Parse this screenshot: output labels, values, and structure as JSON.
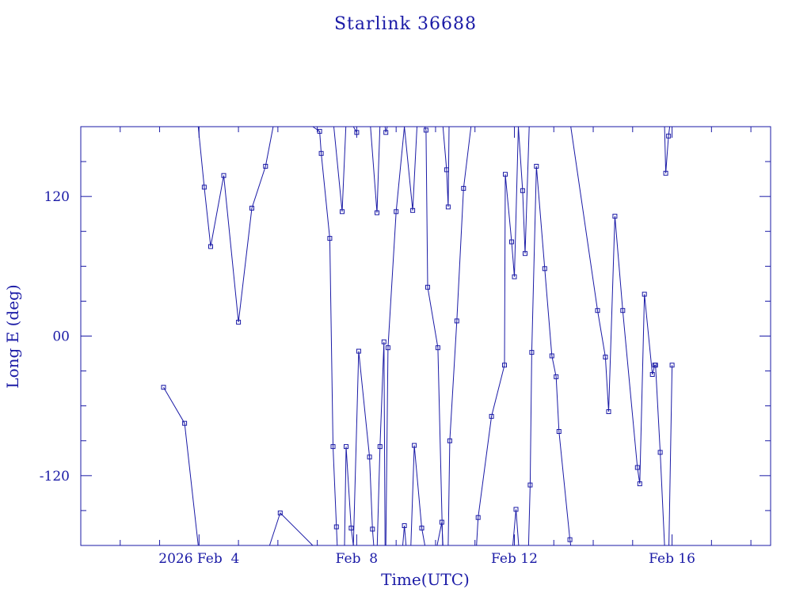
{
  "chart_data": {
    "type": "line",
    "title": "Starlink 36688",
    "xlabel": "Time(UTC)",
    "ylabel": "Long E (deg)",
    "x_range": [
      "2026-02-01T00:00",
      "2026-02-18T12:00"
    ],
    "ylim": [
      -180,
      180
    ],
    "x_tick_labels": [
      {
        "at": "2026-02-04T00:00",
        "label": "2026 Feb  4"
      },
      {
        "at": "2026-02-08T00:00",
        "label": "Feb  8"
      },
      {
        "at": "2026-02-12T00:00",
        "label": "Feb 12"
      },
      {
        "at": "2026-02-16T00:00",
        "label": "Feb 16"
      }
    ],
    "y_tick_labels": [
      {
        "at": 120,
        "label": "120"
      },
      {
        "at": 0,
        "label": "00"
      },
      {
        "at": -120,
        "label": "-120"
      }
    ],
    "grid": false,
    "color": "#1a1aa6",
    "series": [
      {
        "points": [
          [
            "2026-02-03T02:24",
            -44
          ],
          [
            "2026-02-03T15:12",
            -75
          ],
          [
            "2026-02-03T23:31",
            -180
          ]
        ]
      },
      {
        "points": [
          [
            "2026-02-03T23:31",
            180
          ],
          [
            "2026-02-04T03:10",
            128
          ],
          [
            "2026-02-04T07:06",
            77
          ],
          [
            "2026-02-04T15:02",
            138
          ],
          [
            "2026-02-05T00:00",
            12
          ],
          [
            "2026-02-05T08:10",
            110
          ],
          [
            "2026-02-05T16:29",
            146
          ],
          [
            "2026-02-05T21:07",
            180
          ]
        ]
      },
      {
        "points": [
          [
            "2026-02-05T18:58",
            -180
          ],
          [
            "2026-02-06T01:26",
            -152
          ],
          [
            "2026-02-06T21:14",
            -180
          ]
        ]
      },
      {
        "points": [
          [
            "2026-02-06T21:14",
            180
          ],
          [
            "2026-02-07T01:26",
            176
          ],
          [
            "2026-02-07T02:24",
            157
          ],
          [
            "2026-02-07T07:35",
            84
          ],
          [
            "2026-02-07T09:36",
            -95
          ],
          [
            "2026-02-07T11:38",
            -164
          ],
          [
            "2026-02-07T12:07",
            -180
          ]
        ]
      },
      {
        "points": [
          [
            "2026-02-07T10:05",
            180
          ],
          [
            "2026-02-07T15:07",
            107
          ],
          [
            "2026-02-07T17:24",
            180
          ]
        ]
      },
      {
        "points": [
          [
            "2026-02-07T16:34",
            -180
          ],
          [
            "2026-02-07T17:31",
            -95
          ],
          [
            "2026-02-07T20:38",
            -165
          ],
          [
            "2026-02-07T21:58",
            -180
          ]
        ]
      },
      {
        "points": [
          [
            "2026-02-07T21:58",
            180
          ],
          [
            "2026-02-08T00:00",
            175
          ]
        ]
      },
      {
        "points": [
          [
            "2026-02-07T21:58",
            -180
          ],
          [
            "2026-02-08T01:12",
            -13
          ],
          [
            "2026-02-08T07:48",
            -104
          ],
          [
            "2026-02-08T09:36",
            -166
          ],
          [
            "2026-02-08T10:22",
            -180
          ]
        ]
      },
      {
        "points": [
          [
            "2026-02-08T08:22",
            180
          ],
          [
            "2026-02-08T12:22",
            106
          ],
          [
            "2026-02-08T14:07",
            180
          ]
        ]
      },
      {
        "points": [
          [
            "2026-02-08T12:29",
            -180
          ],
          [
            "2026-02-08T14:10",
            -95
          ],
          [
            "2026-02-08T16:36",
            -5
          ],
          [
            "2026-02-08T17:17",
            -180
          ]
        ]
      },
      {
        "points": [
          [
            "2026-02-08T17:17",
            180
          ],
          [
            "2026-02-08T17:46",
            175
          ],
          [
            "2026-02-08T18:38",
            180
          ]
        ]
      },
      {
        "points": [
          [
            "2026-02-08T17:46",
            -180
          ],
          [
            "2026-02-08T19:02",
            -10
          ],
          [
            "2026-02-09T00:00",
            107
          ],
          [
            "2026-02-09T05:02",
            180
          ]
        ]
      },
      {
        "points": [
          [
            "2026-02-09T04:00",
            -180
          ],
          [
            "2026-02-09T05:02",
            -163
          ],
          [
            "2026-02-09T06:02",
            -180
          ]
        ]
      },
      {
        "points": [
          [
            "2026-02-09T05:02",
            180
          ],
          [
            "2026-02-09T10:05",
            108
          ],
          [
            "2026-02-09T12:41",
            180
          ]
        ]
      },
      {
        "points": [
          [
            "2026-02-09T09:00",
            -180
          ],
          [
            "2026-02-09T11:02",
            -94
          ],
          [
            "2026-02-09T15:36",
            -165
          ],
          [
            "2026-02-09T17:31",
            -180
          ]
        ]
      },
      {
        "points": [
          [
            "2026-02-09T17:31",
            180
          ],
          [
            "2026-02-09T18:12",
            177
          ],
          [
            "2026-02-09T19:12",
            42
          ],
          [
            "2026-02-10T01:26",
            -10
          ],
          [
            "2026-02-10T04:19",
            -180
          ]
        ]
      },
      {
        "points": [
          [
            "2026-02-10T00:58",
            -180
          ],
          [
            "2026-02-10T03:50",
            -160
          ],
          [
            "2026-02-10T04:31",
            -180
          ]
        ]
      },
      {
        "points": [
          [
            "2026-02-10T04:31",
            180
          ],
          [
            "2026-02-10T06:43",
            143
          ],
          [
            "2026-02-10T07:43",
            111
          ],
          [
            "2026-02-10T08:14",
            180
          ]
        ]
      },
      {
        "points": [
          [
            "2026-02-10T07:43",
            -180
          ],
          [
            "2026-02-10T08:40",
            -90
          ],
          [
            "2026-02-10T12:58",
            13
          ],
          [
            "2026-02-10T17:02",
            127
          ],
          [
            "2026-02-10T21:36",
            180
          ]
        ]
      },
      {
        "points": [
          [
            "2026-02-11T00:58",
            -180
          ],
          [
            "2026-02-11T01:55",
            -156
          ],
          [
            "2026-02-11T10:05",
            -69
          ],
          [
            "2026-02-11T18:00",
            -25
          ],
          [
            "2026-02-11T18:29",
            139
          ],
          [
            "2026-02-11T22:19",
            81
          ],
          [
            "2026-02-12T00:00",
            51
          ],
          [
            "2026-02-12T02:24",
            180
          ]
        ]
      },
      {
        "points": [
          [
            "2026-02-11T23:02",
            -180
          ],
          [
            "2026-02-12T00:58",
            -149
          ],
          [
            "2026-02-12T02:38",
            -180
          ]
        ]
      },
      {
        "points": [
          [
            "2026-02-12T02:24",
            180
          ],
          [
            "2026-02-12T05:02",
            125
          ],
          [
            "2026-02-12T06:31",
            71
          ],
          [
            "2026-02-12T09:02",
            180
          ]
        ]
      },
      {
        "points": [
          [
            "2026-02-12T08:38",
            -180
          ],
          [
            "2026-02-12T09:36",
            -128
          ],
          [
            "2026-02-12T10:34",
            -14
          ],
          [
            "2026-02-12T13:26",
            146
          ],
          [
            "2026-02-12T18:29",
            58
          ],
          [
            "2026-02-12T22:48",
            -17
          ],
          [
            "2026-02-13T01:26",
            -35
          ],
          [
            "2026-02-13T03:10",
            -82
          ],
          [
            "2026-02-13T09:50",
            -175
          ],
          [
            "2026-02-13T10:19",
            -180
          ]
        ]
      },
      {
        "points": [
          [
            "2026-02-13T10:19",
            180
          ],
          [
            "2026-02-14T02:38",
            22
          ],
          [
            "2026-02-14T07:26",
            -18
          ],
          [
            "2026-02-14T09:22",
            -65
          ],
          [
            "2026-02-14T13:12",
            103
          ],
          [
            "2026-02-14T17:58",
            22
          ],
          [
            "2026-02-15T02:53",
            -113
          ],
          [
            "2026-02-15T04:19",
            -127
          ],
          [
            "2026-02-15T07:12",
            36
          ],
          [
            "2026-02-15T12:00",
            -33
          ],
          [
            "2026-02-15T13:26",
            -25
          ],
          [
            "2026-02-15T13:55",
            -25
          ],
          [
            "2026-02-15T16:48",
            -100
          ],
          [
            "2026-02-15T19:26",
            -180
          ]
        ]
      },
      {
        "points": [
          [
            "2026-02-15T19:26",
            180
          ],
          [
            "2026-02-15T20:10",
            140
          ],
          [
            "2026-02-15T21:50",
            172
          ],
          [
            "2026-02-15T22:34",
            180
          ]
        ]
      },
      {
        "points": [
          [
            "2026-02-15T22:05",
            -180
          ],
          [
            "2026-02-16T00:00",
            -25
          ]
        ]
      }
    ]
  }
}
